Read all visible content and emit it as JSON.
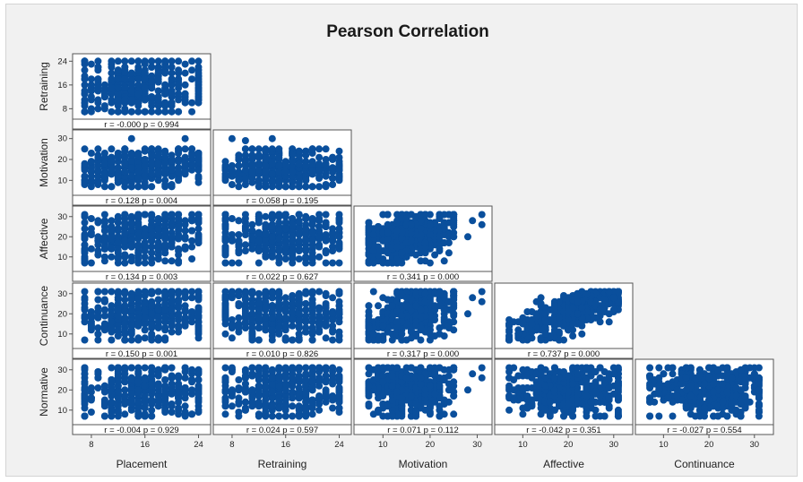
{
  "chart_data": {
    "type": "scatter",
    "layout": "lower-triangular scatterplot matrix",
    "title": "Pearson Correlation",
    "point_color": "#0a4f9c",
    "variables": [
      {
        "name": "Placement",
        "range": [
          6,
          25
        ],
        "ticks": [
          "8",
          "16",
          "24"
        ]
      },
      {
        "name": "Retraining",
        "range": [
          6,
          25
        ],
        "ticks": [
          "8",
          "16",
          "24"
        ]
      },
      {
        "name": "Motivation",
        "range": [
          5,
          32
        ],
        "ticks": [
          "10",
          "20",
          "30"
        ]
      },
      {
        "name": "Affective",
        "range": [
          5,
          33
        ],
        "ticks": [
          "10",
          "20",
          "30"
        ]
      },
      {
        "name": "Continuance",
        "range": [
          5,
          33
        ],
        "ticks": [
          "10",
          "20",
          "30"
        ]
      },
      {
        "name": "Normative",
        "range": [
          5,
          33
        ],
        "ticks": [
          "10",
          "20",
          "30"
        ]
      }
    ],
    "panels": [
      {
        "row": "Retraining",
        "col": "Placement",
        "label": "r = -0.000  p = 0.994"
      },
      {
        "row": "Motivation",
        "col": "Placement",
        "label": "r = 0.128  p = 0.004"
      },
      {
        "row": "Motivation",
        "col": "Retraining",
        "label": "r = 0.058  p = 0.195"
      },
      {
        "row": "Affective",
        "col": "Placement",
        "label": "r = 0.134  p = 0.003"
      },
      {
        "row": "Affective",
        "col": "Retraining",
        "label": "r = 0.022  p = 0.627"
      },
      {
        "row": "Affective",
        "col": "Motivation",
        "label": "r = 0.341  p = 0.000"
      },
      {
        "row": "Continuance",
        "col": "Placement",
        "label": "r = 0.150  p = 0.001"
      },
      {
        "row": "Continuance",
        "col": "Retraining",
        "label": "r = 0.010  p = 0.826"
      },
      {
        "row": "Continuance",
        "col": "Motivation",
        "label": "r = 0.317  p = 0.000"
      },
      {
        "row": "Continuance",
        "col": "Affective",
        "label": "r = 0.737  p = 0.000"
      },
      {
        "row": "Normative",
        "col": "Placement",
        "label": "r = -0.004  p = 0.929"
      },
      {
        "row": "Normative",
        "col": "Retraining",
        "label": "r = 0.024  p = 0.597"
      },
      {
        "row": "Normative",
        "col": "Motivation",
        "label": "r = 0.071  p = 0.112"
      },
      {
        "row": "Normative",
        "col": "Affective",
        "label": "r = -0.042  p = 0.351"
      },
      {
        "row": "Normative",
        "col": "Continuance",
        "label": "r = -0.027  p = 0.554"
      }
    ]
  }
}
